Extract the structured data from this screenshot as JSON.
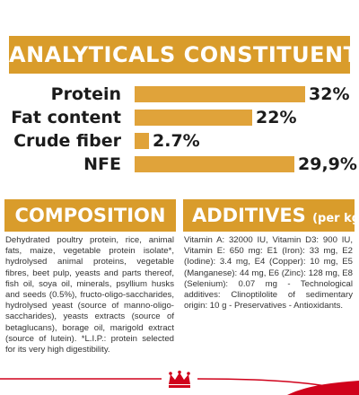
{
  "analytical": {
    "title": "ANALYTICALS CONSTITUENTS",
    "rows": [
      {
        "label": "Protein",
        "value_text": "32%",
        "value": 32
      },
      {
        "label": "Fat content",
        "value_text": "22%",
        "value": 22
      },
      {
        "label": "Crude fiber",
        "value_text": "2.7%",
        "value": 2.7
      },
      {
        "label": "NFE",
        "value_text": "29,9%",
        "value": 29.9
      }
    ]
  },
  "composition": {
    "title": "COMPOSITION",
    "text": "Dehydrated poultry protein, rice, animal fats, maize, vegetable protein isolate*, hydrolysed animal proteins, vegetable fibres, beet pulp, yeasts and parts thereof, fish oil, soya oil, minerals, psyllium husks and seeds (0.5%), fructo-oligo-saccharides, hydrolysed yeast (source of manno-oligo-saccharides), yeasts extracts (source of betaglucans), borage oil, marigold extract (source of lutein). *L.I.P.: protein selected for its very high digestibility."
  },
  "additives": {
    "title": "ADDITIVES",
    "subtitle": "(per kg)",
    "text": "Vitamin A: 32000 IU, Vitamin D3: 900 IU, Vitamin E: 650 mg: E1 (Iron): 33 mg, E2 (Iodine): 3.4 mg, E4 (Copper): 10 mg, E5 (Manganese): 44 mg, E6 (Zinc): 128 mg, E8 (Selenium): 0.07 mg - Technological additives: Clinoptilolite of sedimentary origin: 10 g - Preservatives - Antioxidants."
  },
  "colors": {
    "banner": "#d99c2b",
    "bar": "#e0a33a",
    "brand_red": "#d0021b"
  },
  "footer": {
    "logo": "crown-logo-icon"
  }
}
